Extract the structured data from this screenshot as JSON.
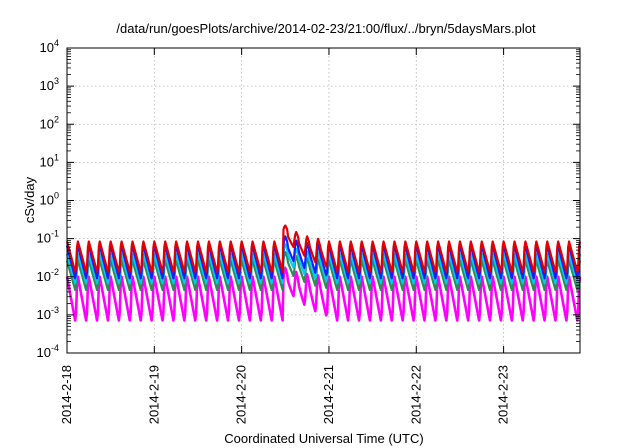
{
  "chart_data": {
    "type": "line",
    "title": "/data/run/goesPlots/archive/2014-02-23/21:00/flux/../bryn/5daysMars.plot",
    "xlabel": "Coordinated Universal Time (UTC)",
    "ylabel": "cSv/day",
    "y_scale": "log",
    "ylim": [
      0.0001,
      10000
    ],
    "y_ticks": [
      {
        "base": "10",
        "exp": "-4",
        "value": 0.0001
      },
      {
        "base": "10",
        "exp": "-3",
        "value": 0.001
      },
      {
        "base": "10",
        "exp": "-2",
        "value": 0.01
      },
      {
        "base": "10",
        "exp": "-1",
        "value": 0.1
      },
      {
        "base": "10",
        "exp": "0",
        "value": 1
      },
      {
        "base": "10",
        "exp": "1",
        "value": 10
      },
      {
        "base": "10",
        "exp": "2",
        "value": 100
      },
      {
        "base": "10",
        "exp": "3",
        "value": 1000
      },
      {
        "base": "10",
        "exp": "4",
        "value": 10000
      }
    ],
    "xlim": [
      "2014-02-18T00:00",
      "2014-02-23T21:00"
    ],
    "x_ticks": [
      "2014-2-18",
      "2014-2-19",
      "2014-2-20",
      "2014-2-21",
      "2014-2-22",
      "2014-2-23"
    ],
    "grid": true,
    "oscillation_period_hours": 3,
    "series": [
      {
        "color": "#e00000",
        "peak": 0.095,
        "trough": 0.012,
        "spike": 0.25
      },
      {
        "color": "#1a1aff",
        "peak": 0.075,
        "trough": 0.008,
        "spike": 0.13
      },
      {
        "color": "#00ccee",
        "peak": 0.045,
        "trough": 0.006,
        "spike": 0.08
      },
      {
        "color": "#2e8b57",
        "peak": 0.03,
        "trough": 0.004,
        "spike": 0.05
      },
      {
        "color": "#ff00ff",
        "peak": 0.012,
        "trough": 0.0006,
        "spike": 0.02
      }
    ],
    "event": {
      "time": "2014-02-20T11:30",
      "peak": 0.25
    }
  }
}
